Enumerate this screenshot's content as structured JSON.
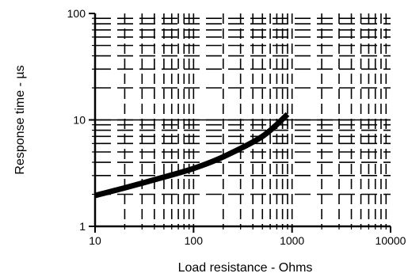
{
  "chart_data": {
    "type": "line",
    "title": "",
    "xlabel": "Load resistance - Ohms",
    "ylabel": "Response time - µs",
    "xscale": "log",
    "yscale": "log",
    "xlim": [
      10,
      10000
    ],
    "ylim": [
      1,
      100
    ],
    "grid": "log-dashed",
    "x_ticks": [
      10,
      100,
      1000,
      10000
    ],
    "x_tick_labels": [
      "10",
      "100",
      "1000",
      "10000"
    ],
    "y_ticks": [
      1,
      10,
      100
    ],
    "y_tick_labels": [
      "1",
      "10",
      "100"
    ],
    "series": [
      {
        "name": "",
        "x": [
          10,
          20,
          50,
          100,
          200,
          500,
          900
        ],
        "y": [
          1.95,
          2.3,
          2.9,
          3.5,
          4.5,
          7.0,
          11.3
        ]
      }
    ],
    "colors": {
      "line": "#000000",
      "grid": "#000000",
      "background": "#ffffff"
    }
  }
}
